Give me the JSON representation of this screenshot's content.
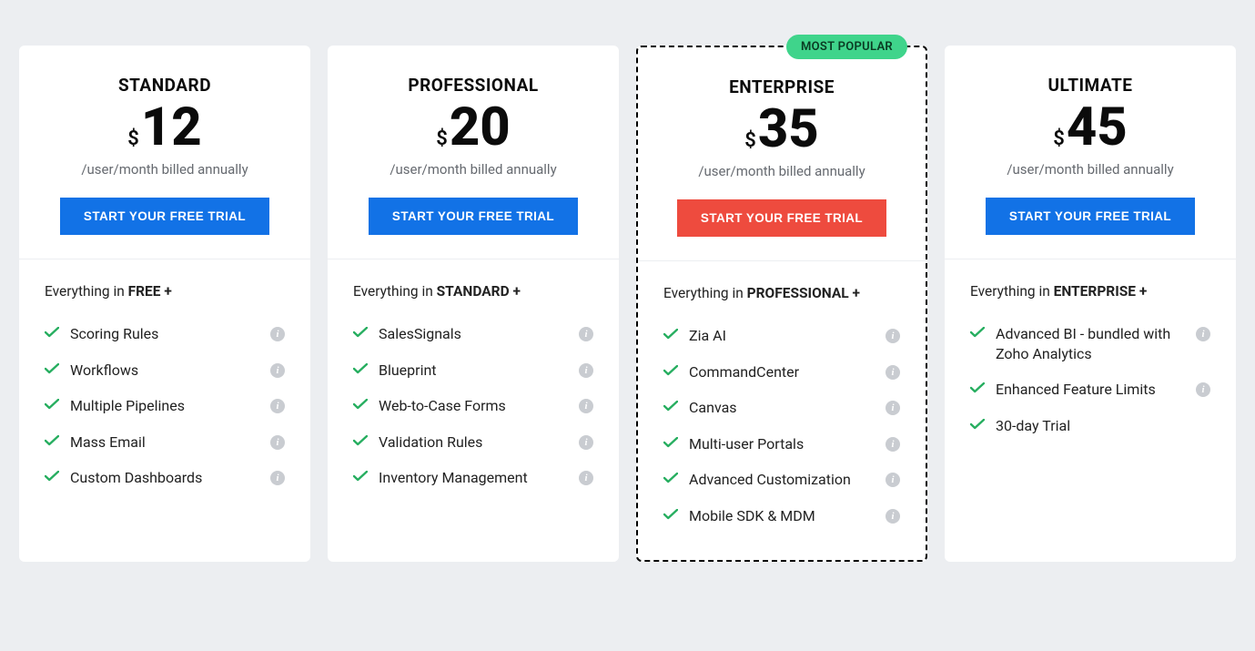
{
  "colors": {
    "page_bg": "#eceef1",
    "card_bg": "#ffffff",
    "cta_blue": "#1272e6",
    "cta_red": "#ee4b3e",
    "check_green": "#27ae60",
    "badge_bg": "#3fd48b",
    "badge_text": "#0a3a22",
    "info_bg": "#c9ccd1",
    "text_dark": "#0b0b0b",
    "text_muted": "#666a70"
  },
  "badge_label": "MOST POPULAR",
  "cta_label": "START YOUR FREE TRIAL",
  "billing_label": "/user/month billed annually",
  "currency_symbol": "$",
  "plans": [
    {
      "name": "STANDARD",
      "price": "12",
      "cta_style": "blue",
      "featured": false,
      "inherits_prefix": "Everything in ",
      "inherits_bold": "FREE +",
      "features": [
        {
          "label": "Scoring Rules",
          "info": true
        },
        {
          "label": "Workflows",
          "info": true
        },
        {
          "label": "Multiple Pipelines",
          "info": true
        },
        {
          "label": "Mass Email",
          "info": true
        },
        {
          "label": "Custom Dashboards",
          "info": true
        }
      ]
    },
    {
      "name": "PROFESSIONAL",
      "price": "20",
      "cta_style": "blue",
      "featured": false,
      "inherits_prefix": "Everything in ",
      "inherits_bold": "STANDARD +",
      "features": [
        {
          "label": "SalesSignals",
          "info": true
        },
        {
          "label": "Blueprint",
          "info": true
        },
        {
          "label": "Web-to-Case Forms",
          "info": true
        },
        {
          "label": "Validation Rules",
          "info": true
        },
        {
          "label": "Inventory Management",
          "info": true
        }
      ]
    },
    {
      "name": "ENTERPRISE",
      "price": "35",
      "cta_style": "red",
      "featured": true,
      "inherits_prefix": "Everything in ",
      "inherits_bold": "PROFESSIONAL +",
      "features": [
        {
          "label": "Zia AI",
          "info": true
        },
        {
          "label": "CommandCenter",
          "info": true
        },
        {
          "label": "Canvas",
          "info": true
        },
        {
          "label": "Multi-user Portals",
          "info": true
        },
        {
          "label": "Advanced Customization",
          "info": true
        },
        {
          "label": "Mobile SDK & MDM",
          "info": true
        }
      ]
    },
    {
      "name": "ULTIMATE",
      "price": "45",
      "cta_style": "blue",
      "featured": false,
      "inherits_prefix": "Everything in ",
      "inherits_bold": "ENTERPRISE +",
      "features": [
        {
          "label": "Advanced BI - bundled with Zoho Analytics",
          "info": true
        },
        {
          "label": "Enhanced Feature Limits",
          "info": true
        },
        {
          "label": "30-day Trial",
          "info": false
        }
      ]
    }
  ]
}
